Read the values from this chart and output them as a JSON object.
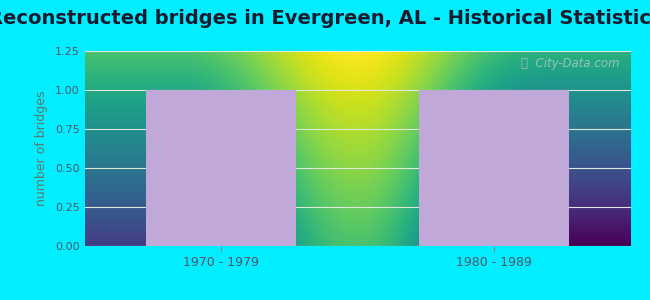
{
  "title": "Reconstructed bridges in Evergreen, AL - Historical Statistics",
  "categories": [
    "1970 - 1979",
    "1980 - 1989"
  ],
  "values": [
    1,
    1
  ],
  "bar_color": "#c0a8d8",
  "ylabel": "number of bridges",
  "ylim": [
    0,
    1.25
  ],
  "yticks": [
    0,
    0.25,
    0.5,
    0.75,
    1,
    1.25
  ],
  "background_outer": "#00eeff",
  "background_plot_top": "#f0f8ee",
  "background_plot_bottom": "#e8f4e8",
  "grid_color": "#e0e8d8",
  "title_fontsize": 14,
  "title_color": "#1a1a2e",
  "axis_label_color": "#5a7a6a",
  "tick_label_color": "#555566",
  "watermark": "ⓘ  City-Data.com",
  "watermark_color": "#b0c8c8"
}
